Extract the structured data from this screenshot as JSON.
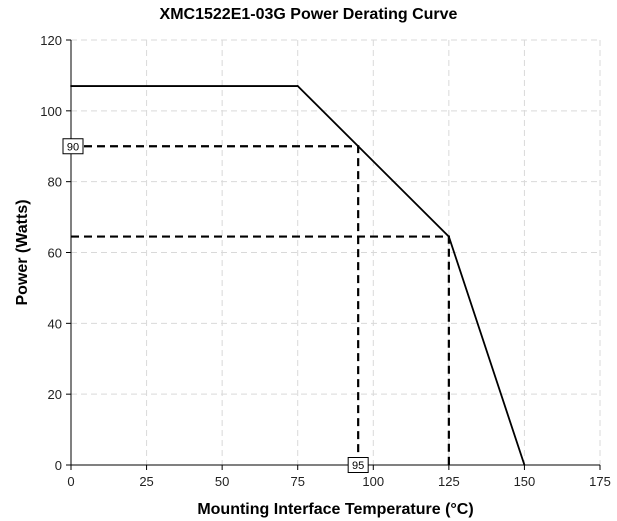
{
  "chart_data": {
    "type": "line",
    "title": "XMC1522E1-03G Power Derating Curve",
    "xlabel": "Mounting Interface Temperature (°C)",
    "ylabel": "Power (Watts)",
    "xlim": [
      0,
      175
    ],
    "ylim": [
      0,
      120
    ],
    "xticks": [
      0,
      25,
      50,
      75,
      100,
      125,
      150,
      175
    ],
    "yticks": [
      0,
      20,
      40,
      60,
      80,
      100,
      120
    ],
    "grid": true,
    "series": [
      {
        "x": [
          0,
          75,
          95,
          125,
          150
        ],
        "y": [
          107,
          107,
          90,
          64.5,
          0
        ],
        "color": "#000000",
        "style": "solid"
      }
    ],
    "reference_lines": [
      {
        "points": [
          [
            0,
            90
          ],
          [
            95,
            90
          ],
          [
            95,
            0
          ]
        ],
        "style": "dashed"
      },
      {
        "points": [
          [
            0,
            64.5
          ],
          [
            125,
            64.5
          ],
          [
            125,
            0
          ]
        ],
        "style": "dashed"
      }
    ],
    "annotations": [
      {
        "text": "90",
        "axis": "y",
        "value": 90
      },
      {
        "text": "95",
        "axis": "x",
        "value": 95
      }
    ]
  }
}
